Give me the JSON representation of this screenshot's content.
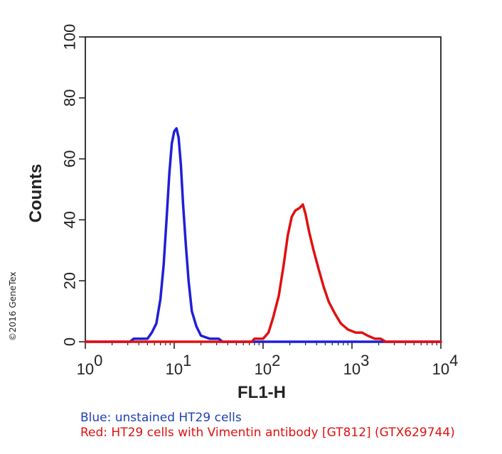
{
  "copyright": "©2016 GeneTex",
  "captions": {
    "blue": "Blue: unstained HT29 cells",
    "red": "Red: HT29 cells with Vimentin antibody [GT812] (GTX629744)"
  },
  "chart_data": {
    "type": "line",
    "title": "",
    "xlabel": "FL1-H",
    "ylabel": "Counts",
    "x_scale": "log",
    "xlim": [
      1,
      10000
    ],
    "ylim": [
      0,
      100
    ],
    "x_ticks": [
      {
        "value": 1,
        "base": "10",
        "exp": "0"
      },
      {
        "value": 10,
        "base": "10",
        "exp": "1"
      },
      {
        "value": 100,
        "base": "10",
        "exp": "2"
      },
      {
        "value": 1000,
        "base": "10",
        "exp": "3"
      },
      {
        "value": 10000,
        "base": "10",
        "exp": "4"
      }
    ],
    "y_ticks": [
      "0",
      "20",
      "40",
      "60",
      "80",
      "100"
    ],
    "grid": false,
    "series": [
      {
        "name": "Blue: unstained HT29 cells",
        "color": "#1f1fd6",
        "points": [
          [
            1,
            0
          ],
          [
            3.2,
            0
          ],
          [
            3.5,
            1
          ],
          [
            4.2,
            1
          ],
          [
            5,
            1
          ],
          [
            5.6,
            3
          ],
          [
            6.3,
            6
          ],
          [
            7,
            14
          ],
          [
            7.6,
            25
          ],
          [
            8.2,
            40
          ],
          [
            8.8,
            55
          ],
          [
            9.4,
            65
          ],
          [
            10,
            69
          ],
          [
            10.6,
            70
          ],
          [
            11.2,
            67
          ],
          [
            11.9,
            58
          ],
          [
            12.6,
            45
          ],
          [
            13.5,
            32
          ],
          [
            14.5,
            20
          ],
          [
            15.8,
            10
          ],
          [
            17.8,
            5
          ],
          [
            20,
            2
          ],
          [
            25,
            1
          ],
          [
            31.6,
            1
          ],
          [
            35,
            0
          ],
          [
            10000,
            0
          ]
        ]
      },
      {
        "name": "Red: HT29 cells with Vimentin antibody [GT812] (GTX629744)",
        "color": "#e01010",
        "points": [
          [
            1,
            0
          ],
          [
            75,
            0
          ],
          [
            80,
            1
          ],
          [
            100,
            1
          ],
          [
            115,
            3
          ],
          [
            130,
            8
          ],
          [
            150,
            15
          ],
          [
            170,
            25
          ],
          [
            190,
            35
          ],
          [
            210,
            41
          ],
          [
            230,
            43
          ],
          [
            260,
            44
          ],
          [
            280,
            45
          ],
          [
            300,
            42
          ],
          [
            330,
            36
          ],
          [
            370,
            30
          ],
          [
            420,
            24
          ],
          [
            480,
            18
          ],
          [
            550,
            13
          ],
          [
            650,
            9
          ],
          [
            750,
            6
          ],
          [
            900,
            4
          ],
          [
            1100,
            3
          ],
          [
            1300,
            3
          ],
          [
            1500,
            2
          ],
          [
            1800,
            1
          ],
          [
            2100,
            1
          ],
          [
            2400,
            0
          ],
          [
            10000,
            0
          ]
        ]
      }
    ]
  }
}
